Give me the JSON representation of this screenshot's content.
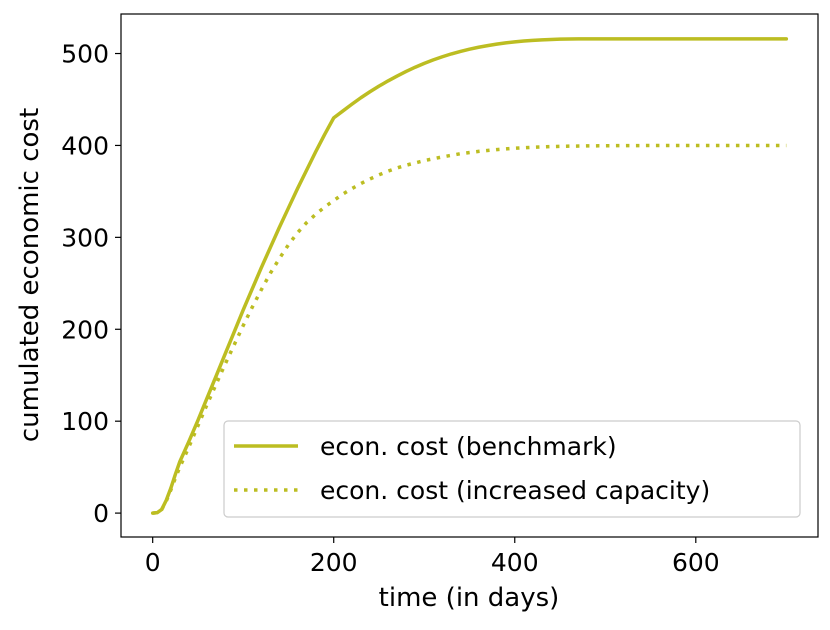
{
  "chart_data": {
    "type": "line",
    "title": "",
    "xlabel": "time (in days)",
    "ylabel": "cumulated economic cost",
    "xlim": [
      -35,
      735
    ],
    "ylim": [
      -26,
      543
    ],
    "xticks": [
      0,
      200,
      400,
      600
    ],
    "yticks": [
      0,
      100,
      200,
      300,
      400,
      500
    ],
    "xtick_labels": [
      "0",
      "200",
      "400",
      "600"
    ],
    "ytick_labels": [
      "0",
      "100",
      "200",
      "300",
      "400",
      "500"
    ],
    "grid": false,
    "legend_position": "lower-right",
    "series": [
      {
        "name": "econ. cost (benchmark)",
        "style": "solid",
        "color": "#bcbd22",
        "x": [
          0,
          5,
          10,
          15,
          20,
          25,
          30,
          40,
          50,
          60,
          70,
          80,
          90,
          100,
          110,
          120,
          130,
          140,
          150,
          160,
          170,
          180,
          190,
          200,
          210,
          220,
          230,
          240,
          250,
          260,
          270,
          280,
          290,
          300,
          310,
          320,
          330,
          340,
          350,
          360,
          370,
          380,
          390,
          400,
          410,
          420,
          430,
          440,
          450,
          460,
          470,
          480,
          490,
          500,
          525,
          550,
          575,
          600,
          625,
          650,
          675,
          700
        ],
        "y": [
          0,
          0.5,
          4,
          14,
          27,
          42,
          56,
          78,
          101,
          125,
          149,
          173,
          197,
          221,
          244,
          267,
          289,
          311,
          332,
          353,
          373,
          393,
          412,
          430,
          437.4,
          444.8,
          451.9,
          458.4,
          464.5,
          470.2,
          475.5,
          480.5,
          485.1,
          489.3,
          493.1,
          496.5,
          499.6,
          502.3,
          504.7,
          506.8,
          508.6,
          510.2,
          511.6,
          512.7,
          513.6,
          514.3,
          514.9,
          515.3,
          515.6,
          515.8,
          515.9,
          516,
          516,
          516,
          516,
          516,
          516,
          516,
          516,
          516,
          516,
          516
        ]
      },
      {
        "name": "econ. cost (increased capacity)",
        "style": "dotted",
        "color": "#bcbd22",
        "x": [
          0,
          5,
          10,
          15,
          20,
          25,
          30,
          40,
          50,
          60,
          70,
          80,
          90,
          100,
          110,
          120,
          130,
          140,
          150,
          160,
          170,
          180,
          190,
          200,
          210,
          220,
          230,
          240,
          250,
          260,
          270,
          280,
          290,
          300,
          320,
          340,
          360,
          380,
          400,
          420,
          440,
          460,
          480,
          500,
          525,
          550,
          575,
          600,
          625,
          650,
          675,
          700
        ],
        "y": [
          0,
          0.5,
          4,
          13,
          25,
          38,
          50,
          72,
          95,
          118,
          140,
          162,
          183,
          204,
          224,
          243,
          261,
          277,
          292,
          305,
          316,
          325,
          333,
          340,
          347,
          353,
          358.5,
          363.5,
          368,
          372,
          375.5,
          378.5,
          381,
          383.5,
          387.5,
          391,
          393.5,
          395.5,
          397,
          398,
          398.7,
          399.2,
          399.5,
          399.7,
          399.8,
          399.9,
          400,
          400,
          400,
          400,
          400,
          400
        ]
      }
    ]
  }
}
